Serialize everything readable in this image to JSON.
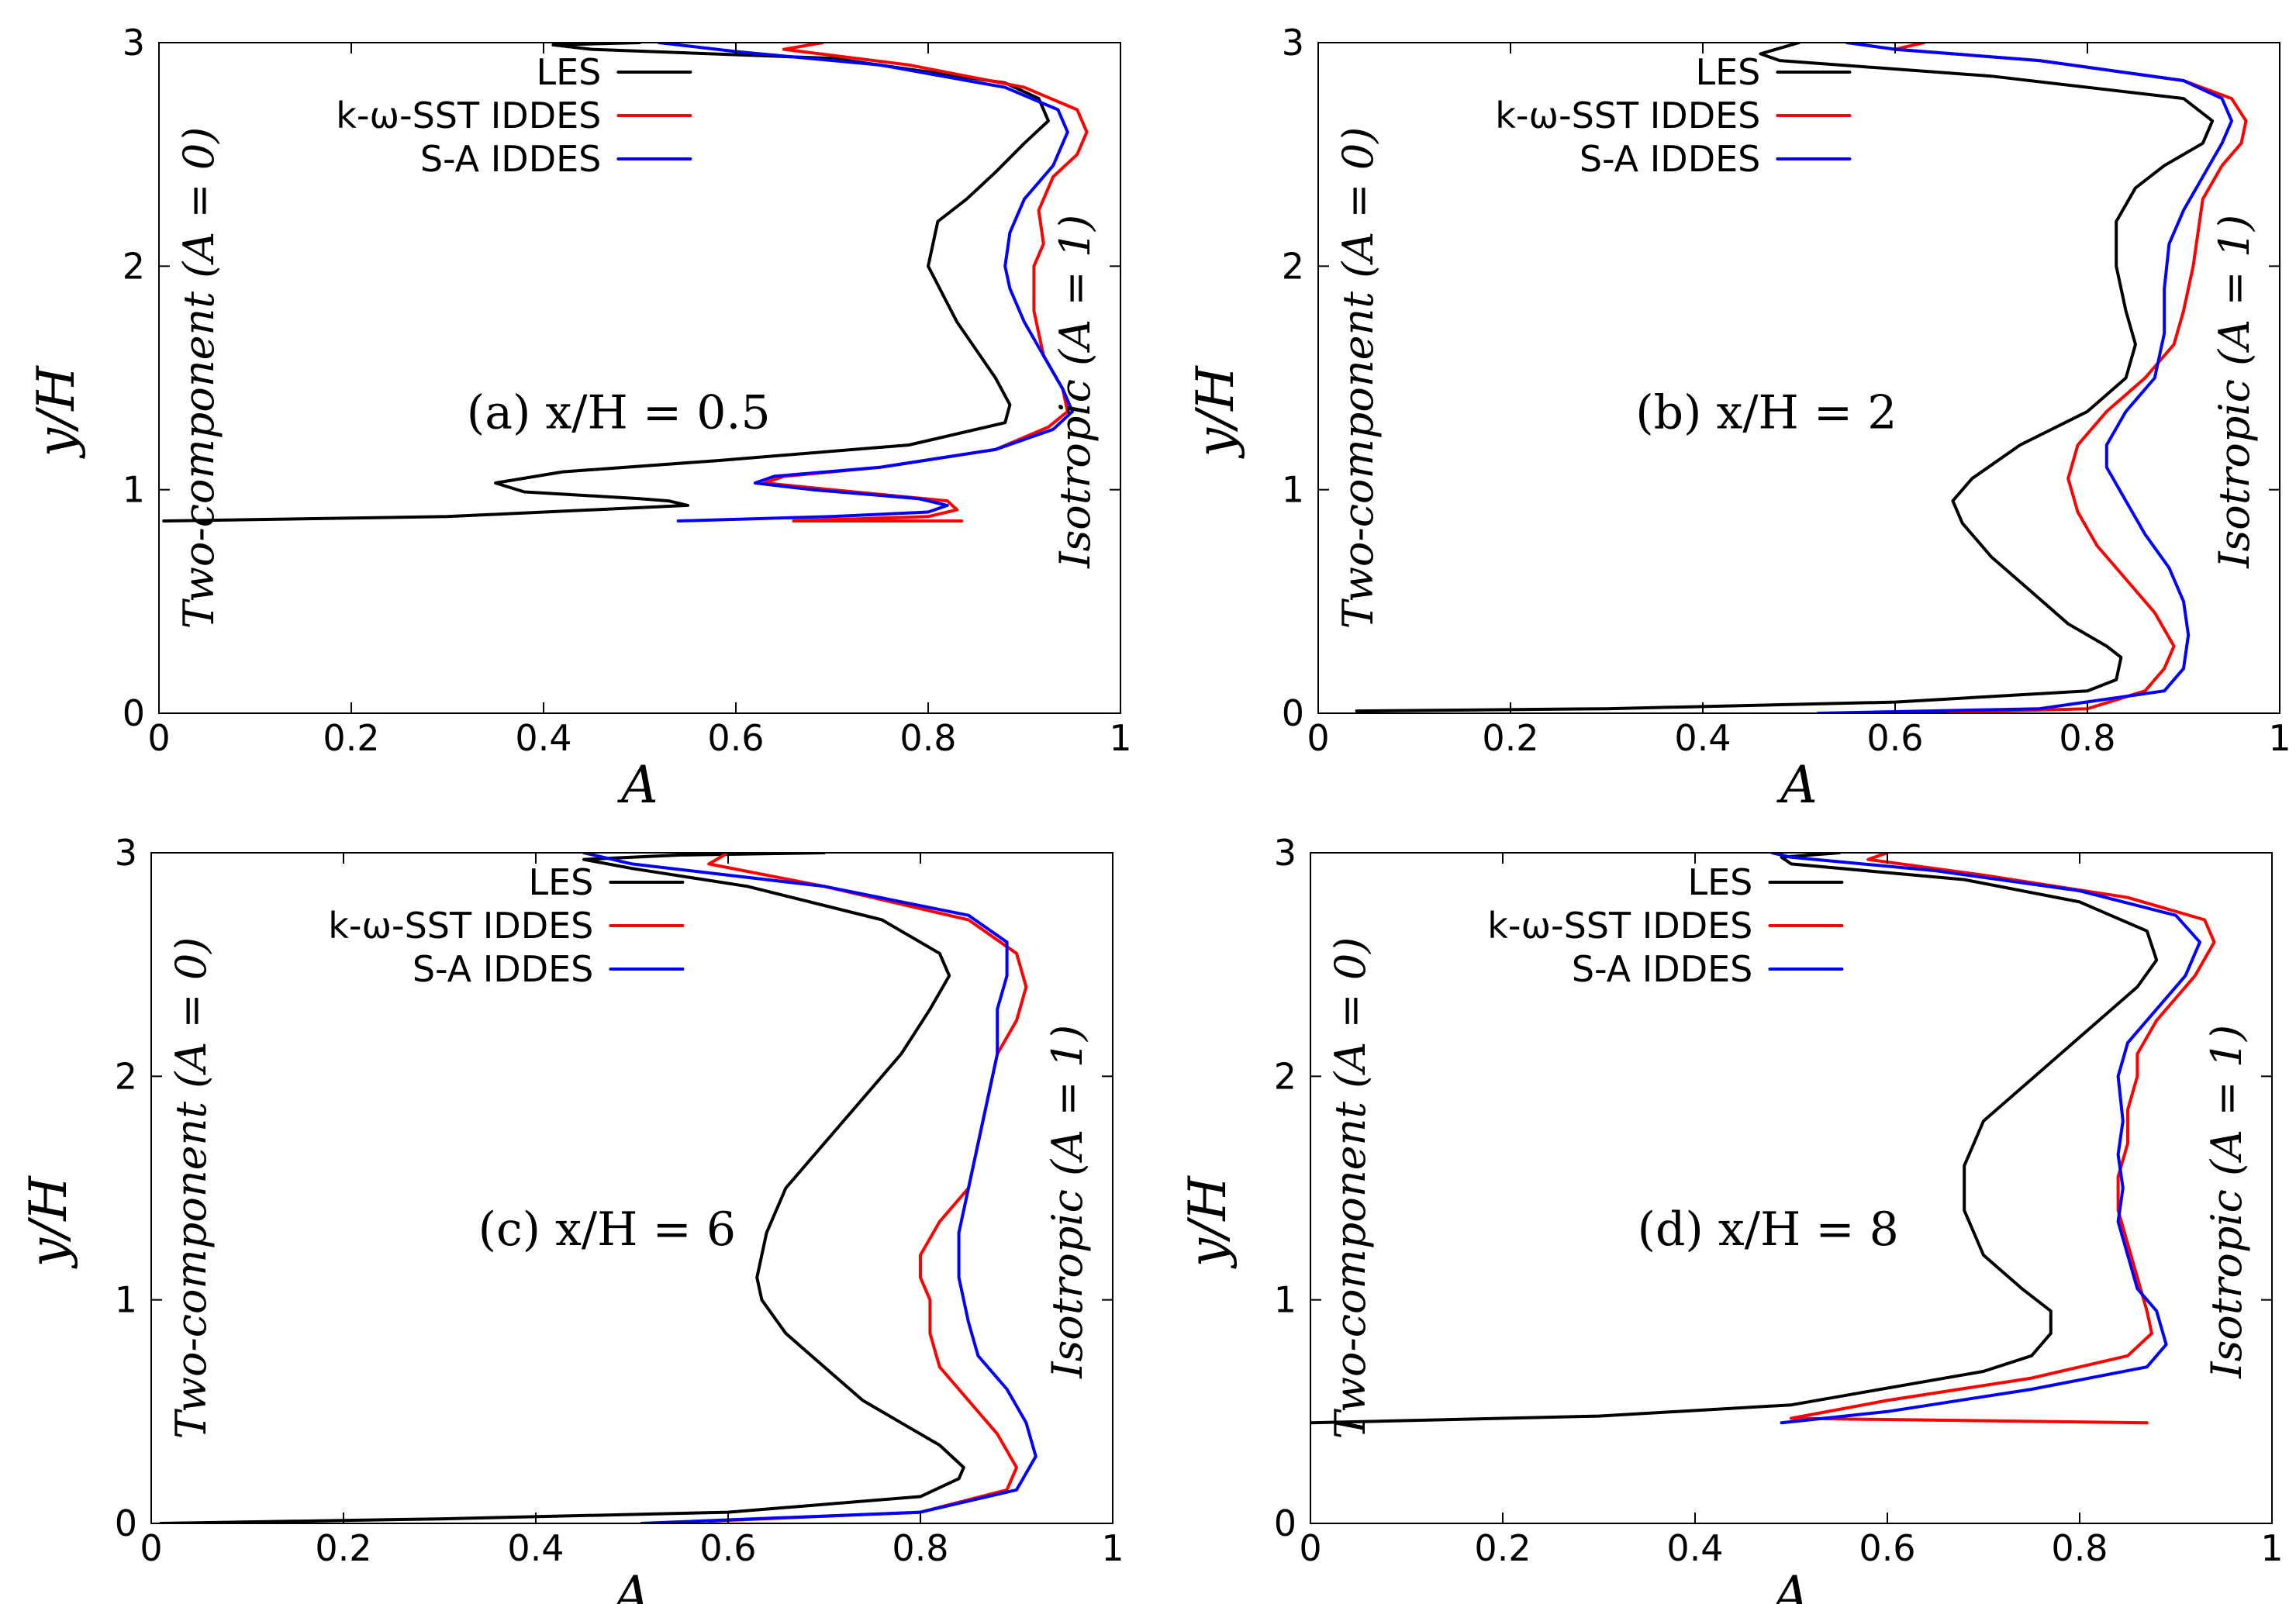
{
  "chart_data": [
    {
      "type": "line",
      "panel_label": "(a) x/H = 0.5",
      "xlabel": "A",
      "ylabel": "y/H",
      "xlim": [
        0,
        1
      ],
      "ylim": [
        0,
        3
      ],
      "xticks": [
        "0",
        "0.2",
        "0.4",
        "0.6",
        "0.8",
        "1"
      ],
      "yticks": [
        "0",
        "1",
        "2",
        "3"
      ],
      "left_annotation": "Two-component (A = 0)",
      "right_annotation": "Isotropic (A = 1)",
      "legend_position": "top-right",
      "series": [
        {
          "name": "LES",
          "color": "#000000",
          "x": [
            0.005,
            0.3,
            0.55,
            0.53,
            0.5,
            0.38,
            0.35,
            0.42,
            0.58,
            0.78,
            0.88,
            0.885,
            0.87,
            0.83,
            0.8,
            0.81,
            0.84,
            0.87,
            0.9,
            0.925,
            0.915,
            0.88,
            0.7,
            0.45,
            0.41,
            0.5
          ],
          "y": [
            0.86,
            0.88,
            0.93,
            0.95,
            0.96,
            0.99,
            1.03,
            1.08,
            1.13,
            1.2,
            1.3,
            1.38,
            1.5,
            1.75,
            2.0,
            2.2,
            2.3,
            2.42,
            2.55,
            2.65,
            2.75,
            2.82,
            2.93,
            2.97,
            2.99,
            3.0
          ]
        },
        {
          "name": "k-ω-SST IDDES",
          "color": "#ff0000",
          "x": [
            0.835,
            0.66,
            0.8,
            0.83,
            0.82,
            0.7,
            0.63,
            0.65,
            0.75,
            0.87,
            0.925,
            0.945,
            0.94,
            0.92,
            0.91,
            0.91,
            0.92,
            0.915,
            0.93,
            0.955,
            0.965,
            0.955,
            0.9,
            0.78,
            0.65,
            0.69
          ],
          "y": [
            0.86,
            0.86,
            0.88,
            0.91,
            0.95,
            1.0,
            1.03,
            1.06,
            1.1,
            1.18,
            1.28,
            1.35,
            1.45,
            1.6,
            1.8,
            2.0,
            2.1,
            2.25,
            2.4,
            2.5,
            2.6,
            2.7,
            2.8,
            2.9,
            2.97,
            3.0
          ]
        },
        {
          "name": "S-A IDDES",
          "color": "#0000ff",
          "x": [
            0.54,
            0.7,
            0.8,
            0.82,
            0.79,
            0.68,
            0.62,
            0.64,
            0.75,
            0.87,
            0.93,
            0.95,
            0.94,
            0.92,
            0.9,
            0.885,
            0.88,
            0.885,
            0.9,
            0.93,
            0.945,
            0.935,
            0.88,
            0.75,
            0.6,
            0.52
          ],
          "y": [
            0.86,
            0.88,
            0.9,
            0.93,
            0.96,
            1.0,
            1.03,
            1.06,
            1.1,
            1.18,
            1.27,
            1.35,
            1.45,
            1.6,
            1.75,
            1.9,
            2.0,
            2.15,
            2.3,
            2.45,
            2.6,
            2.7,
            2.8,
            2.9,
            2.96,
            3.0
          ]
        }
      ]
    },
    {
      "type": "line",
      "panel_label": "(b) x/H = 2",
      "xlabel": "A",
      "ylabel": "y/H",
      "xlim": [
        0,
        1
      ],
      "ylim": [
        0,
        3
      ],
      "xticks": [
        "0",
        "0.2",
        "0.4",
        "0.6",
        "0.8",
        "1"
      ],
      "yticks": [
        "0",
        "1",
        "2",
        "3"
      ],
      "left_annotation": "Two-component (A = 0)",
      "right_annotation": "Isotropic (A = 1)",
      "legend_position": "top-right",
      "series": [
        {
          "name": "LES",
          "color": "#000000",
          "x": [
            0.04,
            0.3,
            0.6,
            0.8,
            0.83,
            0.835,
            0.82,
            0.78,
            0.74,
            0.7,
            0.67,
            0.66,
            0.68,
            0.73,
            0.8,
            0.84,
            0.85,
            0.84,
            0.83,
            0.83,
            0.85,
            0.88,
            0.92,
            0.93,
            0.9,
            0.7,
            0.48,
            0.46,
            0.5
          ],
          "y": [
            0.01,
            0.02,
            0.05,
            0.1,
            0.15,
            0.25,
            0.3,
            0.4,
            0.55,
            0.7,
            0.85,
            0.95,
            1.05,
            1.2,
            1.35,
            1.5,
            1.65,
            1.8,
            2.0,
            2.2,
            2.35,
            2.45,
            2.55,
            2.65,
            2.75,
            2.85,
            2.92,
            2.95,
            3.0
          ]
        },
        {
          "name": "k-ω-SST IDDES",
          "color": "#ff0000",
          "x": [
            0.62,
            0.8,
            0.86,
            0.88,
            0.89,
            0.87,
            0.84,
            0.81,
            0.79,
            0.78,
            0.79,
            0.82,
            0.86,
            0.89,
            0.9,
            0.91,
            0.915,
            0.92,
            0.94,
            0.96,
            0.965,
            0.95,
            0.9,
            0.75,
            0.6,
            0.63
          ],
          "y": [
            0.0,
            0.02,
            0.1,
            0.2,
            0.3,
            0.45,
            0.6,
            0.75,
            0.9,
            1.05,
            1.2,
            1.35,
            1.5,
            1.65,
            1.8,
            2.0,
            2.15,
            2.3,
            2.45,
            2.55,
            2.65,
            2.75,
            2.83,
            2.92,
            2.97,
            3.0
          ]
        },
        {
          "name": "S-A IDDES",
          "color": "#0000ff",
          "x": [
            0.52,
            0.75,
            0.88,
            0.9,
            0.905,
            0.9,
            0.885,
            0.86,
            0.84,
            0.82,
            0.82,
            0.84,
            0.87,
            0.88,
            0.88,
            0.885,
            0.9,
            0.92,
            0.94,
            0.95,
            0.94,
            0.9,
            0.75,
            0.6,
            0.55
          ],
          "y": [
            0.0,
            0.02,
            0.1,
            0.2,
            0.35,
            0.5,
            0.65,
            0.8,
            0.95,
            1.1,
            1.2,
            1.35,
            1.5,
            1.7,
            1.9,
            2.1,
            2.25,
            2.4,
            2.55,
            2.65,
            2.75,
            2.83,
            2.92,
            2.97,
            3.0
          ]
        }
      ]
    },
    {
      "type": "line",
      "panel_label": "(c) x/H = 6",
      "xlabel": "A",
      "ylabel": "y/H",
      "xlim": [
        0,
        1
      ],
      "ylim": [
        0,
        3
      ],
      "xticks": [
        "0",
        "0.2",
        "0.4",
        "0.6",
        "0.8",
        "1"
      ],
      "yticks": [
        "0",
        "1",
        "2",
        "3"
      ],
      "left_annotation": "Two-component (A = 0)",
      "right_annotation": "Isotropic (A = 1)",
      "legend_position": "top-right",
      "series": [
        {
          "name": "LES",
          "color": "#000000",
          "x": [
            0.01,
            0.3,
            0.6,
            0.8,
            0.84,
            0.845,
            0.82,
            0.78,
            0.74,
            0.7,
            0.66,
            0.635,
            0.63,
            0.64,
            0.66,
            0.7,
            0.74,
            0.78,
            0.81,
            0.83,
            0.82,
            0.76,
            0.62,
            0.5,
            0.45,
            0.55,
            0.7
          ],
          "y": [
            0.0,
            0.02,
            0.05,
            0.12,
            0.2,
            0.25,
            0.35,
            0.45,
            0.55,
            0.7,
            0.85,
            1.0,
            1.1,
            1.3,
            1.5,
            1.7,
            1.9,
            2.1,
            2.3,
            2.45,
            2.55,
            2.7,
            2.85,
            2.93,
            2.97,
            2.99,
            3.0
          ]
        },
        {
          "name": "k-ω-SST IDDES",
          "color": "#ff0000",
          "x": [
            0.58,
            0.8,
            0.89,
            0.9,
            0.88,
            0.85,
            0.82,
            0.81,
            0.81,
            0.8,
            0.8,
            0.82,
            0.85,
            0.86,
            0.87,
            0.88,
            0.9,
            0.91,
            0.9,
            0.85,
            0.7,
            0.58,
            0.6
          ],
          "y": [
            0.01,
            0.05,
            0.15,
            0.25,
            0.4,
            0.55,
            0.7,
            0.85,
            1.0,
            1.1,
            1.2,
            1.35,
            1.5,
            1.7,
            1.9,
            2.1,
            2.25,
            2.4,
            2.55,
            2.7,
            2.85,
            2.95,
            3.0
          ]
        },
        {
          "name": "S-A IDDES",
          "color": "#0000ff",
          "x": [
            0.51,
            0.8,
            0.9,
            0.92,
            0.91,
            0.89,
            0.86,
            0.85,
            0.84,
            0.84,
            0.85,
            0.86,
            0.87,
            0.88,
            0.88,
            0.89,
            0.89,
            0.85,
            0.7,
            0.5,
            0.45
          ],
          "y": [
            0.0,
            0.05,
            0.15,
            0.3,
            0.45,
            0.6,
            0.75,
            0.9,
            1.1,
            1.3,
            1.5,
            1.7,
            1.9,
            2.1,
            2.3,
            2.45,
            2.6,
            2.72,
            2.85,
            2.95,
            3.0
          ]
        }
      ]
    },
    {
      "type": "line",
      "panel_label": "(d) x/H = 8",
      "xlabel": "A",
      "ylabel": "y/H",
      "xlim": [
        0,
        1
      ],
      "ylim": [
        0,
        3
      ],
      "xticks": [
        "0",
        "0.2",
        "0.4",
        "0.6",
        "0.8",
        "1"
      ],
      "yticks": [
        "0",
        "1",
        "2",
        "3"
      ],
      "left_annotation": "Two-component (A = 0)",
      "right_annotation": "Isotropic (A = 1)",
      "legend_position": "top-right",
      "series": [
        {
          "name": "LES",
          "color": "#000000",
          "x": [
            0.0,
            0.3,
            0.5,
            0.62,
            0.7,
            0.75,
            0.77,
            0.77,
            0.74,
            0.7,
            0.68,
            0.68,
            0.7,
            0.74,
            0.78,
            0.82,
            0.86,
            0.88,
            0.87,
            0.8,
            0.68,
            0.5,
            0.49,
            0.55
          ],
          "y": [
            0.45,
            0.48,
            0.53,
            0.62,
            0.68,
            0.75,
            0.85,
            0.95,
            1.05,
            1.2,
            1.4,
            1.6,
            1.8,
            1.95,
            2.1,
            2.25,
            2.4,
            2.52,
            2.65,
            2.78,
            2.88,
            2.95,
            2.98,
            3.0
          ]
        },
        {
          "name": "k-ω-SST IDDES",
          "color": "#ff0000",
          "x": [
            0.87,
            0.5,
            0.6,
            0.75,
            0.85,
            0.875,
            0.87,
            0.86,
            0.85,
            0.84,
            0.84,
            0.85,
            0.85,
            0.86,
            0.86,
            0.88,
            0.92,
            0.94,
            0.93,
            0.85,
            0.7,
            0.58,
            0.6
          ],
          "y": [
            0.45,
            0.47,
            0.55,
            0.65,
            0.75,
            0.85,
            0.95,
            1.1,
            1.25,
            1.4,
            1.55,
            1.7,
            1.85,
            2.0,
            2.1,
            2.25,
            2.45,
            2.6,
            2.7,
            2.8,
            2.9,
            2.97,
            3.0
          ]
        },
        {
          "name": "S-A IDDES",
          "color": "#0000ff",
          "x": [
            0.49,
            0.6,
            0.75,
            0.87,
            0.89,
            0.88,
            0.86,
            0.85,
            0.84,
            0.845,
            0.84,
            0.845,
            0.84,
            0.85,
            0.88,
            0.91,
            0.925,
            0.9,
            0.8,
            0.65,
            0.5,
            0.48
          ],
          "y": [
            0.45,
            0.5,
            0.6,
            0.7,
            0.8,
            0.95,
            1.05,
            1.2,
            1.35,
            1.5,
            1.65,
            1.8,
            2.0,
            2.15,
            2.3,
            2.45,
            2.6,
            2.72,
            2.83,
            2.92,
            2.98,
            3.0
          ]
        }
      ]
    }
  ]
}
